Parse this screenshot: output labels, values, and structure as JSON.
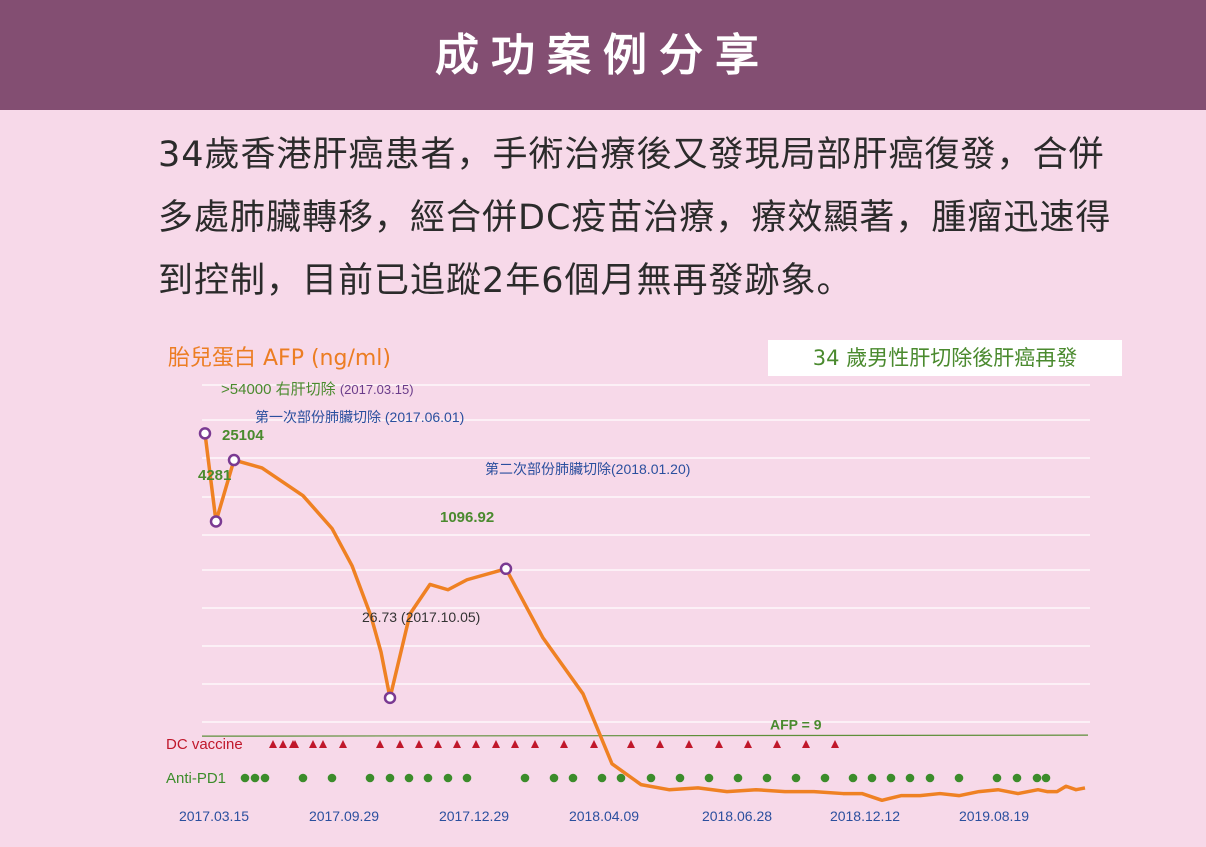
{
  "header": {
    "title": "成功案例分享"
  },
  "description": "34歲香港肝癌患者，手術治療後又發現局部肝癌復發，合併多處肺臟轉移，經合併DC疫苗治療，療效顯著，腫瘤迅速得到控制，目前已追蹤2年6個月無再發跡象。",
  "chart_data": {
    "type": "line",
    "ylabel": "胎兒蛋白 AFP (ng/ml)",
    "case_label": "34 歲男性肝切除後肝癌再發",
    "reference_line": {
      "label": "AFP = 9",
      "value": 9
    },
    "x_ticks": [
      "2017.03.15",
      "2017.09.29",
      "2017.12.29",
      "2018.04.09",
      "2018.06.28",
      "2018.12.12",
      "2019.08.19"
    ],
    "annotations": [
      {
        "value": ">54000",
        "text": "右肝切除",
        "date": "(2017.03.15)"
      },
      {
        "value": "4281"
      },
      {
        "value": "25104"
      },
      {
        "text": "第一次部份肺臟切除",
        "date": "(2017.06.01)"
      },
      {
        "value": "26.73",
        "date": "(2017.10.05)"
      },
      {
        "value": "1096.92"
      },
      {
        "text": "第二次部份肺臟切除",
        "date": "(2018.01.20)"
      }
    ],
    "series": [
      {
        "values": [
          54000,
          4281,
          25104,
          20000,
          9000,
          3500,
          1200,
          280,
          100,
          26.73,
          300,
          700,
          600,
          800,
          1096.92,
          150,
          30,
          4,
          2.2,
          1.9,
          2.0,
          1.8,
          1.9,
          1.8,
          1.8,
          1.7,
          1.7,
          1.4,
          1.6,
          1.6,
          1.7,
          1.6,
          1.8,
          1.9,
          1.7,
          1.9,
          1.8,
          1.8,
          2.1,
          1.9,
          2.0
        ]
      }
    ],
    "treatments": [
      {
        "name": "DC vaccine",
        "marker": "triangle",
        "color": "#c0182b",
        "count": 26
      },
      {
        "name": "Anti-PD1",
        "marker": "circle",
        "color": "#3c8c2b",
        "count": 33
      }
    ],
    "colors": {
      "line": "#ef8123",
      "marker": "#7a3a92",
      "reference": "#5e8f3a",
      "grid": "#ffffff"
    }
  }
}
